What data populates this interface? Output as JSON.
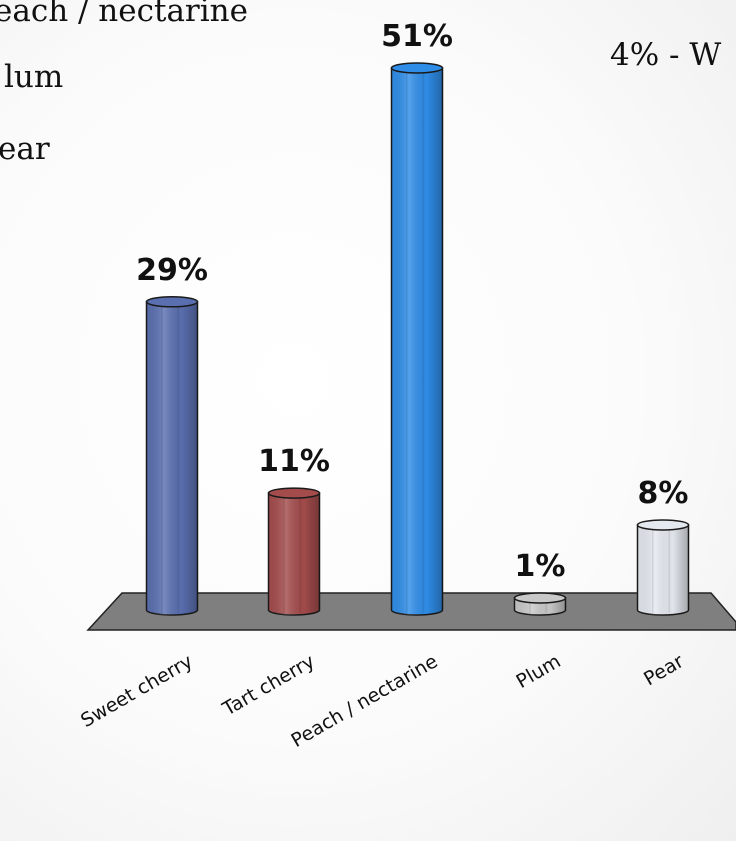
{
  "side_list": [
    "each / nectarine",
    "lum",
    "ear"
  ],
  "side_note": "4% - W",
  "chart_data": {
    "type": "bar",
    "categories": [
      "Sweet cherry",
      "Tart cherry",
      "Peach / nectarine",
      "Plum",
      "Pear"
    ],
    "values": [
      29,
      11,
      51,
      1,
      8
    ],
    "data_labels": [
      "29%",
      "11%",
      "51%",
      "1%",
      "8%"
    ],
    "ylim": [
      0,
      51
    ],
    "grid": false,
    "colors": [
      "#5a6fb0",
      "#a44c4c",
      "#2f8de8",
      "#c8c8c8",
      "#e4e8ef"
    ],
    "floor_color": "#7f7f7f"
  }
}
